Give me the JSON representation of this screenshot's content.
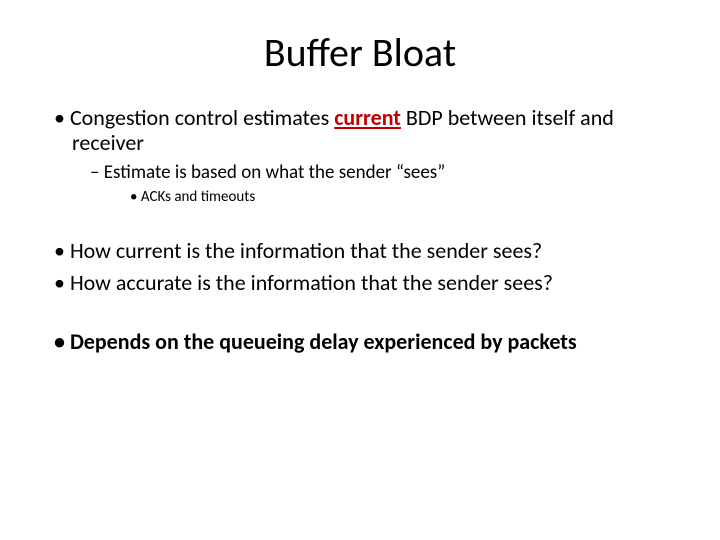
{
  "slide": {
    "title": "Buffer Bloat",
    "title_fontsize": 40,
    "title_color": "#000000",
    "background_color": "#ffffff",
    "body_color": "#000000",
    "accent_color": "#c00000",
    "fontsizes": {
      "l1": 22,
      "l2": 19,
      "l3": 15
    },
    "bullets": [
      {
        "level": 1,
        "pre": "Congestion control estimates ",
        "emph": "current",
        "post": " BDP between itself and receiver"
      },
      {
        "level": 2,
        "text": "Estimate is based on what the sender “sees”"
      },
      {
        "level": 3,
        "text": "ACKs and timeouts"
      },
      {
        "gap": true
      },
      {
        "level": 1,
        "text": "How current is the information that the sender sees?"
      },
      {
        "level": 1,
        "text": "How accurate is the information that the sender sees?"
      },
      {
        "gap": true
      },
      {
        "level": 1,
        "bold": true,
        "text": "Depends on the queueing delay experienced by packets"
      }
    ]
  }
}
